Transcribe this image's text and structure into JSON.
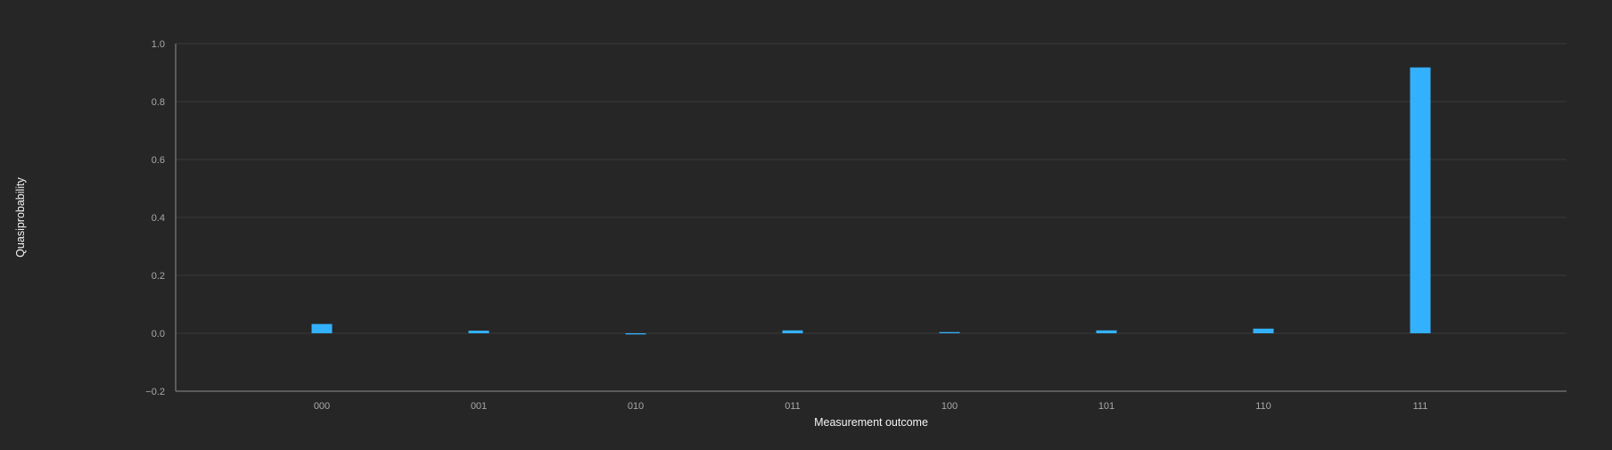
{
  "chart_data": {
    "type": "bar",
    "title": "",
    "xlabel": "Measurement outcome",
    "ylabel": "Quasiprobability",
    "categories": [
      "000",
      "001",
      "010",
      "011",
      "100",
      "101",
      "110",
      "111"
    ],
    "values": [
      0.032,
      0.009,
      -0.004,
      0.01,
      0.004,
      0.01,
      0.016,
      0.918
    ],
    "ylim": [
      -0.2,
      1.0
    ],
    "yticks": [
      "1.0",
      "0.8",
      "0.6",
      "0.4",
      "0.2",
      "0.0",
      "−0.2"
    ],
    "ytick_values": [
      1.0,
      0.8,
      0.6,
      0.4,
      0.2,
      0.0,
      -0.2
    ],
    "grid": true,
    "legend": "none"
  },
  "colors": {
    "background": "#262626",
    "bar": "#33b1ff",
    "grid": "#393939",
    "axis": "#8d8d8d",
    "tick_text": "#a8a8a8",
    "label_text": "#f4f4f4"
  }
}
